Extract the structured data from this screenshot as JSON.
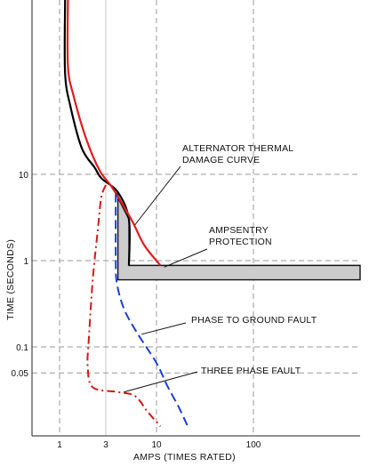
{
  "chart_data": {
    "type": "line",
    "xlabel": "AMPS (TIMES RATED)",
    "ylabel": "TIME (SECONDS)",
    "x_scale": "log",
    "y_scale": "log",
    "x_ticks": [
      {
        "value": 1,
        "label": "1"
      },
      {
        "value": 3,
        "label": "3"
      },
      {
        "value": 10,
        "label": "10"
      },
      {
        "value": 100,
        "label": "100"
      }
    ],
    "y_ticks": [
      {
        "value": 10,
        "label": "10"
      },
      {
        "value": 1,
        "label": "1"
      },
      {
        "value": 0.1,
        "label": "0.1"
      },
      {
        "value": 0.05,
        "label": "0.05"
      }
    ],
    "grid": true,
    "series": [
      {
        "key": "black",
        "color": "#000000",
        "style": "solid",
        "points": [
          [
            1.14,
            2000
          ],
          [
            1.14,
            150
          ],
          [
            1.3,
            60
          ],
          [
            1.7,
            20
          ],
          [
            2.3,
            12
          ],
          [
            2.7,
            9
          ],
          [
            4.0,
            6.2
          ],
          [
            5.2,
            3.0
          ],
          [
            5.2,
            0.88
          ]
        ]
      },
      {
        "key": "alternator",
        "name": "ALTERNATOR THERMAL DAMAGE CURVE",
        "color": "#e31b1b",
        "style": "solid",
        "points": [
          [
            1.22,
            2000
          ],
          [
            1.22,
            180
          ],
          [
            1.4,
            80
          ],
          [
            1.9,
            25
          ],
          [
            2.6,
            11
          ],
          [
            3.5,
            7
          ],
          [
            5.5,
            3.0
          ],
          [
            7.5,
            1.5
          ],
          [
            11,
            0.88
          ]
        ]
      },
      {
        "key": "phase_ground",
        "name": "PHASE TO GROUND FAULT",
        "color": "#1b3fd8",
        "style": "dashed",
        "points": [
          [
            3.8,
            6
          ],
          [
            3.8,
            1.0
          ],
          [
            3.9,
            0.55
          ],
          [
            4.6,
            0.28
          ],
          [
            6.2,
            0.15
          ],
          [
            10,
            0.065
          ],
          [
            13,
            0.035
          ],
          [
            17,
            0.02
          ],
          [
            21,
            0.012
          ]
        ]
      },
      {
        "key": "three_phase",
        "name": "THREE PHASE FAULT",
        "color": "#d41818",
        "style": "dashdot",
        "points": [
          [
            3.0,
            7.5
          ],
          [
            2.7,
            5.5
          ],
          [
            2.5,
            2.5
          ],
          [
            2.2,
            0.6
          ],
          [
            2.0,
            0.12
          ],
          [
            1.95,
            0.06
          ],
          [
            2.2,
            0.034
          ],
          [
            4.0,
            0.03
          ],
          [
            6.0,
            0.027
          ],
          [
            8.0,
            0.018
          ],
          [
            11.0,
            0.012
          ]
        ]
      }
    ],
    "ampsentry_protection": {
      "name": "AMPSENTRY PROTECTION",
      "fill": "#cccccc",
      "stroke": "#111111",
      "outline": [
        [
          3.8,
          6
        ],
        [
          5.2,
          3.0
        ],
        [
          5.2,
          0.88
        ],
        [
          1300,
          0.88
        ],
        [
          1300,
          0.6
        ],
        [
          4.0,
          0.6
        ],
        [
          4.0,
          6
        ]
      ]
    },
    "annotations": [
      {
        "key": "alt",
        "lines": [
          "ALTERNATOR THERMAL",
          "DAMAGE CURVE"
        ],
        "target": [
          6.0,
          2.6
        ]
      },
      {
        "key": "amps",
        "lines": [
          "AMPSENTRY",
          "PROTECTION"
        ],
        "target": [
          12,
          0.84
        ]
      },
      {
        "key": "pg",
        "lines": [
          "PHASE TO GROUND FAULT"
        ],
        "target": [
          7.0,
          0.14
        ]
      },
      {
        "key": "tp",
        "lines": [
          "THREE PHASE FAULT"
        ],
        "target": [
          4.6,
          0.03
        ]
      }
    ]
  }
}
